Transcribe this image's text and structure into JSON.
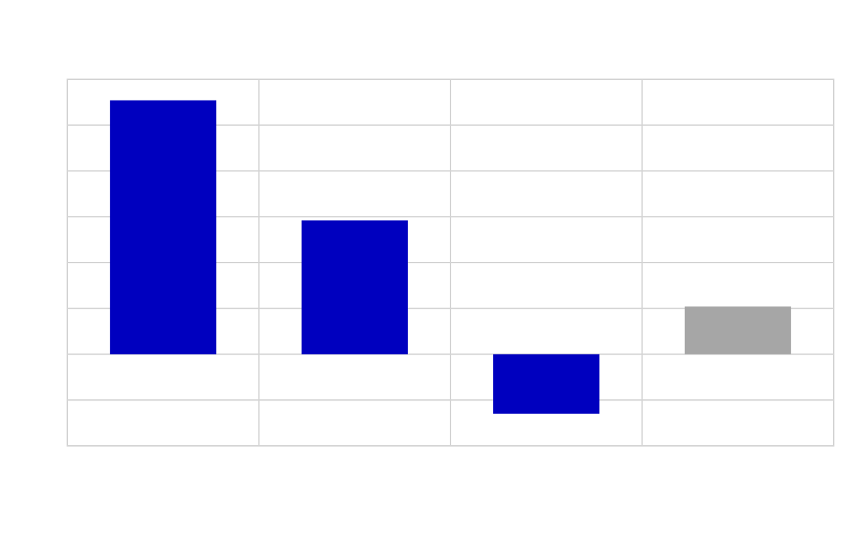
{
  "chart_data": {
    "type": "bar",
    "title": "",
    "xlabel": "",
    "ylabel": "",
    "categories": [
      "",
      "",
      "",
      ""
    ],
    "values": [
      5.54,
      2.92,
      -1.3,
      1.04
    ],
    "bar_colors": [
      "#0000bf",
      "#0000bf",
      "#0000bf",
      "#a6a6a6"
    ],
    "ylim": [
      -2,
      6
    ],
    "grid": true,
    "legend": "none",
    "colors": {
      "positive": "#0000bf",
      "negative": "#0000bf",
      "neutral": "#a6a6a6",
      "grid": "#d4d4d4",
      "background": "#ffffff"
    }
  }
}
